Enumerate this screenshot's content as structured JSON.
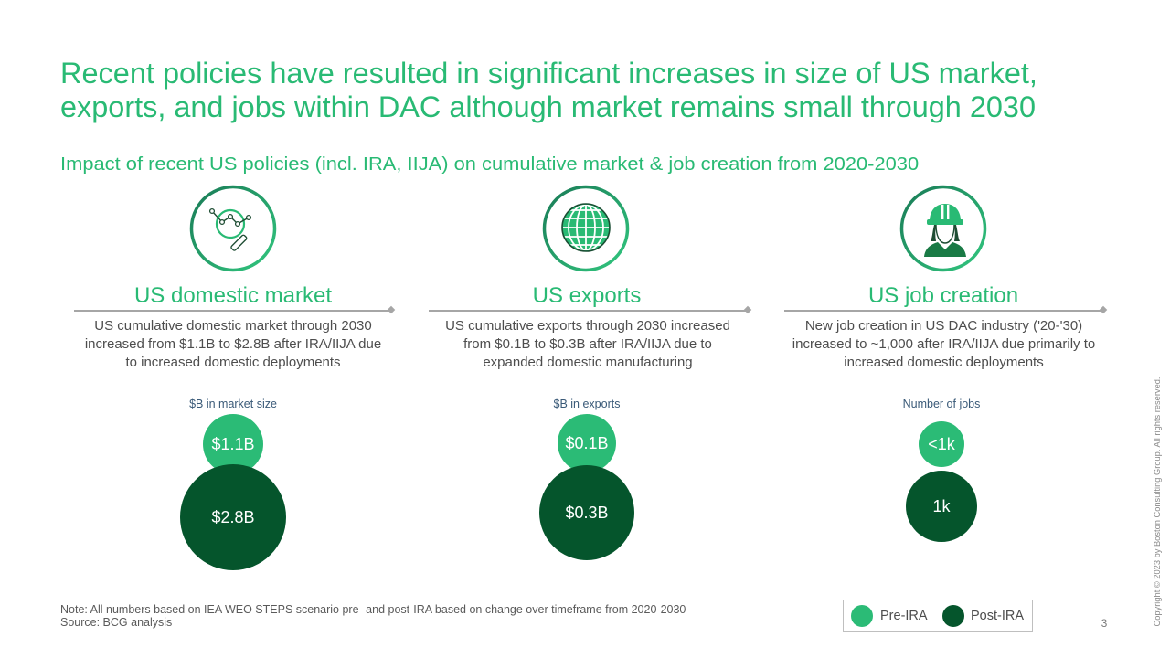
{
  "slide": {
    "title_lines": [
      "Recent policies have resulted in significant increases in size of US market,",
      "exports, and jobs within DAC although market remains small through 2030"
    ],
    "subtitle": "Impact of recent US policies (incl. IRA, IIJA) on cumulative market & job creation from 2020-2030"
  },
  "columns": [
    {
      "icon": "magnifier-chart-icon",
      "heading": "US domestic market",
      "description": [
        "US cumulative domestic market through 2030",
        "increased from $1.1B to $2.8B after IRA/IIJA due",
        "to increased domestic deployments"
      ]
    },
    {
      "icon": "globe-icon",
      "heading": "US exports",
      "description": [
        "US cumulative exports through 2030 increased",
        "from $0.1B to $0.3B after IRA/IIJA due to",
        "expanded domestic manufacturing"
      ]
    },
    {
      "icon": "worker-icon",
      "heading": "US job creation",
      "description": [
        "New job creation in US DAC industry ('20-'30)",
        "increased to ~1,000 after IRA/IIJA due primarily to",
        "increased domestic deployments"
      ]
    }
  ],
  "chart_data": {
    "type": "bubble",
    "legend": [
      "Pre-IRA",
      "Post-IRA"
    ],
    "legend_position": "bottom-right",
    "panels": [
      {
        "title": "$B in market size",
        "categories": [
          "Pre-IRA",
          "Post-IRA"
        ],
        "values": [
          1.1,
          2.8
        ],
        "labels": [
          "$1.1B",
          "$2.8B"
        ]
      },
      {
        "title": "$B in exports",
        "categories": [
          "Pre-IRA",
          "Post-IRA"
        ],
        "values": [
          0.1,
          0.3
        ],
        "labels": [
          "$0.1B",
          "$0.3B"
        ]
      },
      {
        "title": "Number of jobs",
        "categories": [
          "Pre-IRA",
          "Post-IRA"
        ],
        "values": [
          "<1k",
          "1k"
        ],
        "labels": [
          "<1k",
          "1k"
        ]
      }
    ]
  },
  "footer": {
    "note": "Note: All numbers based on IEA WEO STEPS scenario pre- and post-IRA based on change over timeframe from 2020-2030",
    "source": "Source: BCG analysis",
    "page_number": "3",
    "copyright": "Copyright © 2023 by Boston Consulting Group. All rights reserved."
  },
  "colors": {
    "accent_green": "#29BA74",
    "pre_ira": "#2BBB76",
    "post_ira": "#05552C",
    "unit_label": "#3a5a78",
    "body_text": "#4d4d4d"
  }
}
